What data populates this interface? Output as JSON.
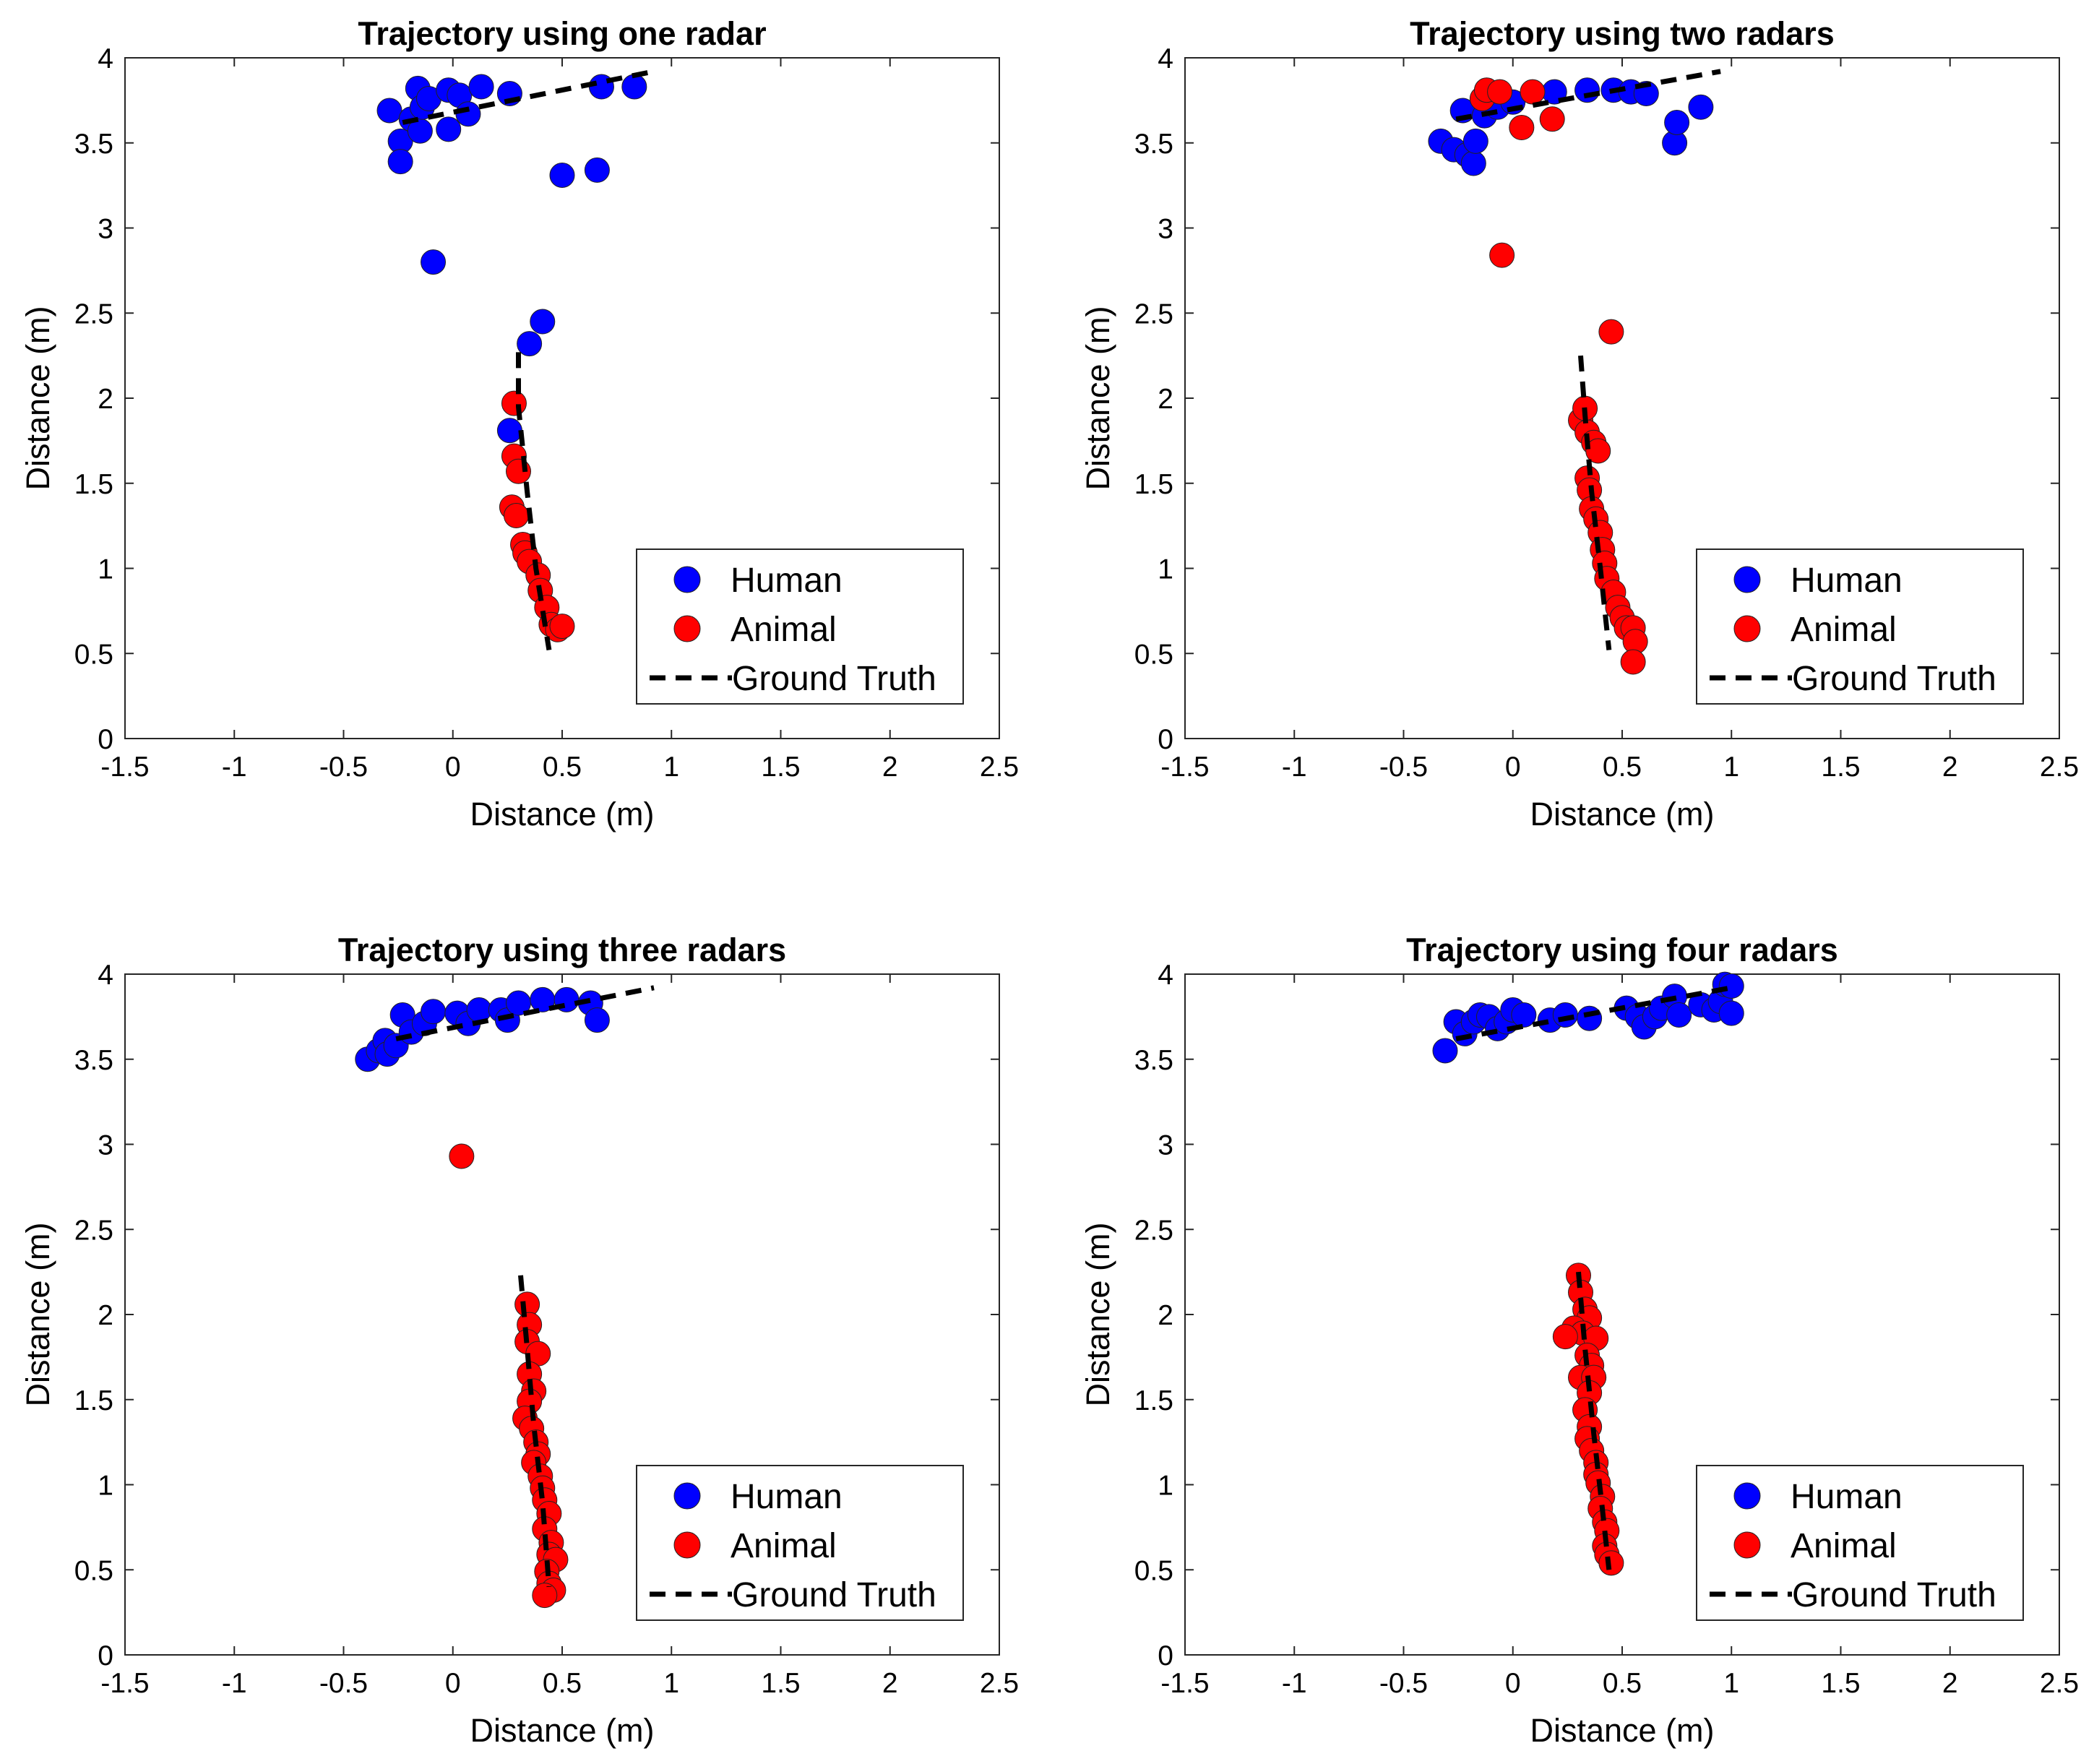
{
  "chart_data": [
    {
      "type": "scatter",
      "title": "Trajectory using one radar",
      "xlabel": "Distance (m)",
      "ylabel": "Distance (m)",
      "xlim": [
        -1.5,
        2.5
      ],
      "ylim": [
        0,
        4
      ],
      "xticks": [
        "-1.5",
        "-1",
        "-0.5",
        "0",
        "0.5",
        "1",
        "1.5",
        "2",
        "2.5"
      ],
      "yticks": [
        "0",
        "0.5",
        "1",
        "1.5",
        "2",
        "2.5",
        "3",
        "3.5",
        "4"
      ],
      "legend": [
        "Human",
        "Animal",
        "Ground Truth"
      ],
      "legend_position": "bottom-right",
      "series": [
        {
          "name": "Human",
          "color": "#0000ff",
          "points": [
            [
              -0.29,
              3.69
            ],
            [
              -0.24,
              3.51
            ],
            [
              -0.24,
              3.39
            ],
            [
              -0.19,
              3.64
            ],
            [
              -0.16,
              3.82
            ],
            [
              -0.15,
              3.57
            ],
            [
              -0.14,
              3.71
            ],
            [
              -0.11,
              3.76
            ],
            [
              -0.09,
              2.8
            ],
            [
              -0.02,
              3.81
            ],
            [
              -0.02,
              3.58
            ],
            [
              0.03,
              3.78
            ],
            [
              0.07,
              3.67
            ],
            [
              0.13,
              3.83
            ],
            [
              0.26,
              3.79
            ],
            [
              0.35,
              2.32
            ],
            [
              0.41,
              2.45
            ],
            [
              0.5,
              3.31
            ],
            [
              0.66,
              3.34
            ],
            [
              0.68,
              3.83
            ],
            [
              0.83,
              3.83
            ],
            [
              0.26,
              1.81
            ]
          ]
        },
        {
          "name": "Animal",
          "color": "#ff0000",
          "points": [
            [
              0.28,
              1.97
            ],
            [
              0.28,
              1.66
            ],
            [
              0.3,
              1.57
            ],
            [
              0.27,
              1.36
            ],
            [
              0.29,
              1.31
            ],
            [
              0.32,
              1.14
            ],
            [
              0.33,
              1.09
            ],
            [
              0.35,
              1.04
            ],
            [
              0.39,
              0.96
            ],
            [
              0.4,
              0.87
            ],
            [
              0.43,
              0.77
            ],
            [
              0.45,
              0.67
            ],
            [
              0.48,
              0.64
            ],
            [
              0.5,
              0.66
            ]
          ]
        },
        {
          "name": "Ground Truth",
          "color": "#000000",
          "segments": [
            [
              [
                -0.23,
                3.62
              ],
              [
                0.92,
                3.92
              ]
            ],
            [
              [
                0.3,
                2.27
              ],
              [
                0.3,
                1.95
              ],
              [
                0.34,
                1.45
              ],
              [
                0.38,
                1.0
              ],
              [
                0.44,
                0.52
              ]
            ]
          ]
        }
      ]
    },
    {
      "type": "scatter",
      "title": "Trajectory using two radars",
      "xlabel": "Distance (m)",
      "ylabel": "Distance (m)",
      "xlim": [
        -1.5,
        2.5
      ],
      "ylim": [
        0,
        4
      ],
      "xticks": [
        "-1.5",
        "-1",
        "-0.5",
        "0",
        "0.5",
        "1",
        "1.5",
        "2",
        "2.5"
      ],
      "yticks": [
        "0",
        "0.5",
        "1",
        "1.5",
        "2",
        "2.5",
        "3",
        "3.5",
        "4"
      ],
      "legend": [
        "Human",
        "Animal",
        "Ground Truth"
      ],
      "legend_position": "bottom-right",
      "series": [
        {
          "name": "Human",
          "color": "#0000ff",
          "points": [
            [
              -0.33,
              3.51
            ],
            [
              -0.27,
              3.46
            ],
            [
              -0.23,
              3.69
            ],
            [
              -0.21,
              3.43
            ],
            [
              -0.18,
              3.38
            ],
            [
              -0.17,
              3.51
            ],
            [
              -0.13,
              3.66
            ],
            [
              -0.07,
              3.71
            ],
            [
              0.0,
              3.74
            ],
            [
              0.19,
              3.8
            ],
            [
              0.34,
              3.81
            ],
            [
              0.46,
              3.81
            ],
            [
              0.54,
              3.8
            ],
            [
              0.61,
              3.79
            ],
            [
              0.74,
              3.5
            ],
            [
              0.75,
              3.62
            ],
            [
              0.86,
              3.71
            ]
          ]
        },
        {
          "name": "Animal",
          "color": "#ff0000",
          "points": [
            [
              -0.14,
              3.76
            ],
            [
              -0.12,
              3.81
            ],
            [
              -0.06,
              3.8
            ],
            [
              -0.05,
              2.84
            ],
            [
              0.04,
              3.59
            ],
            [
              0.09,
              3.8
            ],
            [
              0.18,
              3.64
            ],
            [
              0.45,
              2.39
            ],
            [
              0.31,
              1.87
            ],
            [
              0.33,
              1.94
            ],
            [
              0.34,
              1.8
            ],
            [
              0.37,
              1.74
            ],
            [
              0.39,
              1.69
            ],
            [
              0.34,
              1.53
            ],
            [
              0.35,
              1.46
            ],
            [
              0.36,
              1.35
            ],
            [
              0.38,
              1.29
            ],
            [
              0.4,
              1.21
            ],
            [
              0.41,
              1.11
            ],
            [
              0.42,
              1.03
            ],
            [
              0.43,
              0.94
            ],
            [
              0.46,
              0.86
            ],
            [
              0.48,
              0.77
            ],
            [
              0.5,
              0.71
            ],
            [
              0.52,
              0.65
            ],
            [
              0.55,
              0.65
            ],
            [
              0.56,
              0.57
            ],
            [
              0.55,
              0.45
            ]
          ]
        },
        {
          "name": "Ground Truth",
          "color": "#000000",
          "segments": [
            [
              [
                -0.26,
                3.64
              ],
              [
                0.95,
                3.92
              ]
            ],
            [
              [
                0.31,
                2.25
              ],
              [
                0.33,
                1.9
              ],
              [
                0.36,
                1.45
              ],
              [
                0.4,
                1.0
              ],
              [
                0.44,
                0.52
              ]
            ]
          ]
        }
      ]
    },
    {
      "type": "scatter",
      "title": "Trajectory using three radars",
      "xlabel": "Distance (m)",
      "ylabel": "Distance (m)",
      "xlim": [
        -1.5,
        2.5
      ],
      "ylim": [
        0,
        4
      ],
      "xticks": [
        "-1.5",
        "-1",
        "-0.5",
        "0",
        "0.5",
        "1",
        "1.5",
        "2",
        "2.5"
      ],
      "yticks": [
        "0",
        "0.5",
        "1",
        "1.5",
        "2",
        "2.5",
        "3",
        "3.5",
        "4"
      ],
      "legend": [
        "Human",
        "Animal",
        "Ground Truth"
      ],
      "legend_position": "bottom-right",
      "series": [
        {
          "name": "Human",
          "color": "#0000ff",
          "points": [
            [
              -0.39,
              3.5
            ],
            [
              -0.34,
              3.55
            ],
            [
              -0.31,
              3.61
            ],
            [
              -0.3,
              3.53
            ],
            [
              -0.26,
              3.58
            ],
            [
              -0.23,
              3.76
            ],
            [
              -0.19,
              3.66
            ],
            [
              -0.13,
              3.71
            ],
            [
              -0.09,
              3.78
            ],
            [
              0.02,
              3.77
            ],
            [
              0.07,
              3.71
            ],
            [
              0.12,
              3.79
            ],
            [
              0.22,
              3.79
            ],
            [
              0.25,
              3.73
            ],
            [
              0.3,
              3.83
            ],
            [
              0.41,
              3.85
            ],
            [
              0.52,
              3.85
            ],
            [
              0.63,
              3.83
            ],
            [
              0.66,
              3.73
            ]
          ]
        },
        {
          "name": "Animal",
          "color": "#ff0000",
          "points": [
            [
              0.04,
              2.93
            ],
            [
              0.34,
              2.06
            ],
            [
              0.35,
              1.94
            ],
            [
              0.34,
              1.84
            ],
            [
              0.39,
              1.77
            ],
            [
              0.35,
              1.65
            ],
            [
              0.37,
              1.55
            ],
            [
              0.35,
              1.49
            ],
            [
              0.33,
              1.39
            ],
            [
              0.36,
              1.33
            ],
            [
              0.38,
              1.25
            ],
            [
              0.39,
              1.18
            ],
            [
              0.37,
              1.13
            ],
            [
              0.4,
              1.05
            ],
            [
              0.41,
              0.98
            ],
            [
              0.42,
              0.91
            ],
            [
              0.44,
              0.83
            ],
            [
              0.42,
              0.74
            ],
            [
              0.45,
              0.66
            ],
            [
              0.44,
              0.59
            ],
            [
              0.47,
              0.56
            ],
            [
              0.43,
              0.49
            ],
            [
              0.44,
              0.42
            ],
            [
              0.46,
              0.38
            ],
            [
              0.42,
              0.35
            ]
          ]
        },
        {
          "name": "Ground Truth",
          "color": "#000000",
          "segments": [
            [
              [
                -0.26,
                3.62
              ],
              [
                0.92,
                3.92
              ]
            ],
            [
              [
                0.31,
                2.23
              ],
              [
                0.34,
                1.8
              ],
              [
                0.37,
                1.35
              ],
              [
                0.41,
                0.9
              ],
              [
                0.44,
                0.4
              ]
            ]
          ]
        }
      ]
    },
    {
      "type": "scatter",
      "title": "Trajectory using four radars",
      "xlabel": "Distance (m)",
      "ylabel": "Distance (m)",
      "xlim": [
        -1.5,
        2.5
      ],
      "ylim": [
        0,
        4
      ],
      "xticks": [
        "-1.5",
        "-1",
        "-0.5",
        "0",
        "0.5",
        "1",
        "1.5",
        "2",
        "2.5"
      ],
      "yticks": [
        "0",
        "0.5",
        "1",
        "1.5",
        "2",
        "2.5",
        "3",
        "3.5",
        "4"
      ],
      "legend": [
        "Human",
        "Animal",
        "Ground Truth"
      ],
      "legend_position": "bottom-right",
      "series": [
        {
          "name": "Human",
          "color": "#0000ff",
          "points": [
            [
              -0.31,
              3.55
            ],
            [
              -0.26,
              3.72
            ],
            [
              -0.22,
              3.65
            ],
            [
              -0.18,
              3.72
            ],
            [
              -0.15,
              3.76
            ],
            [
              -0.11,
              3.75
            ],
            [
              -0.07,
              3.68
            ],
            [
              -0.03,
              3.72
            ],
            [
              0.0,
              3.79
            ],
            [
              0.05,
              3.76
            ],
            [
              0.17,
              3.73
            ],
            [
              0.24,
              3.76
            ],
            [
              0.35,
              3.74
            ],
            [
              0.52,
              3.8
            ],
            [
              0.57,
              3.75
            ],
            [
              0.6,
              3.69
            ],
            [
              0.65,
              3.75
            ],
            [
              0.68,
              3.8
            ],
            [
              0.74,
              3.87
            ],
            [
              0.76,
              3.76
            ],
            [
              0.86,
              3.82
            ],
            [
              0.92,
              3.79
            ],
            [
              0.95,
              3.84
            ],
            [
              0.97,
              3.94
            ],
            [
              1.0,
              3.77
            ],
            [
              1.0,
              3.93
            ]
          ]
        },
        {
          "name": "Animal",
          "color": "#ff0000",
          "points": [
            [
              0.3,
              2.23
            ],
            [
              0.31,
              2.13
            ],
            [
              0.33,
              2.03
            ],
            [
              0.35,
              1.98
            ],
            [
              0.28,
              1.92
            ],
            [
              0.32,
              1.89
            ],
            [
              0.24,
              1.87
            ],
            [
              0.38,
              1.86
            ],
            [
              0.34,
              1.76
            ],
            [
              0.36,
              1.7
            ],
            [
              0.31,
              1.63
            ],
            [
              0.37,
              1.63
            ],
            [
              0.35,
              1.54
            ],
            [
              0.33,
              1.44
            ],
            [
              0.35,
              1.34
            ],
            [
              0.34,
              1.27
            ],
            [
              0.36,
              1.2
            ],
            [
              0.38,
              1.13
            ],
            [
              0.38,
              1.06
            ],
            [
              0.39,
              1.01
            ],
            [
              0.41,
              0.93
            ],
            [
              0.4,
              0.86
            ],
            [
              0.42,
              0.78
            ],
            [
              0.43,
              0.73
            ],
            [
              0.42,
              0.64
            ],
            [
              0.43,
              0.59
            ],
            [
              0.45,
              0.54
            ]
          ]
        },
        {
          "name": "Ground Truth",
          "color": "#000000",
          "segments": [
            [
              [
                -0.26,
                3.62
              ],
              [
                1.0,
                3.92
              ]
            ],
            [
              [
                0.3,
                2.25
              ],
              [
                0.33,
                1.8
              ],
              [
                0.37,
                1.3
              ],
              [
                0.41,
                0.85
              ],
              [
                0.44,
                0.5
              ]
            ]
          ]
        }
      ]
    }
  ]
}
